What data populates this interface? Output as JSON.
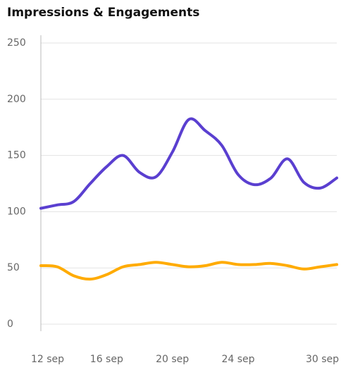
{
  "chart_data": {
    "type": "line",
    "title": "Impressions & Engagements",
    "categories": [
      "12 sep",
      null,
      null,
      null,
      "16 sep",
      null,
      null,
      null,
      "20 sep",
      null,
      null,
      null,
      "24 sep",
      null,
      null,
      null,
      null,
      null,
      "30 sep"
    ],
    "series": [
      {
        "color": "#5a3fd0",
        "values": [
          103,
          106,
          109,
          125,
          140,
          150,
          135,
          131,
          153,
          182,
          172,
          159,
          133,
          124,
          130,
          147,
          126,
          121,
          130
        ]
      },
      {
        "color": "#ffab00",
        "values": [
          52,
          51,
          43,
          40,
          44,
          51,
          53,
          55,
          53,
          51,
          52,
          55,
          53,
          53,
          54,
          52,
          49,
          51,
          53
        ]
      }
    ],
    "ylim": [
      0,
      250
    ],
    "yticks": [
      0,
      50,
      100,
      150,
      200,
      250
    ],
    "grid": true
  }
}
